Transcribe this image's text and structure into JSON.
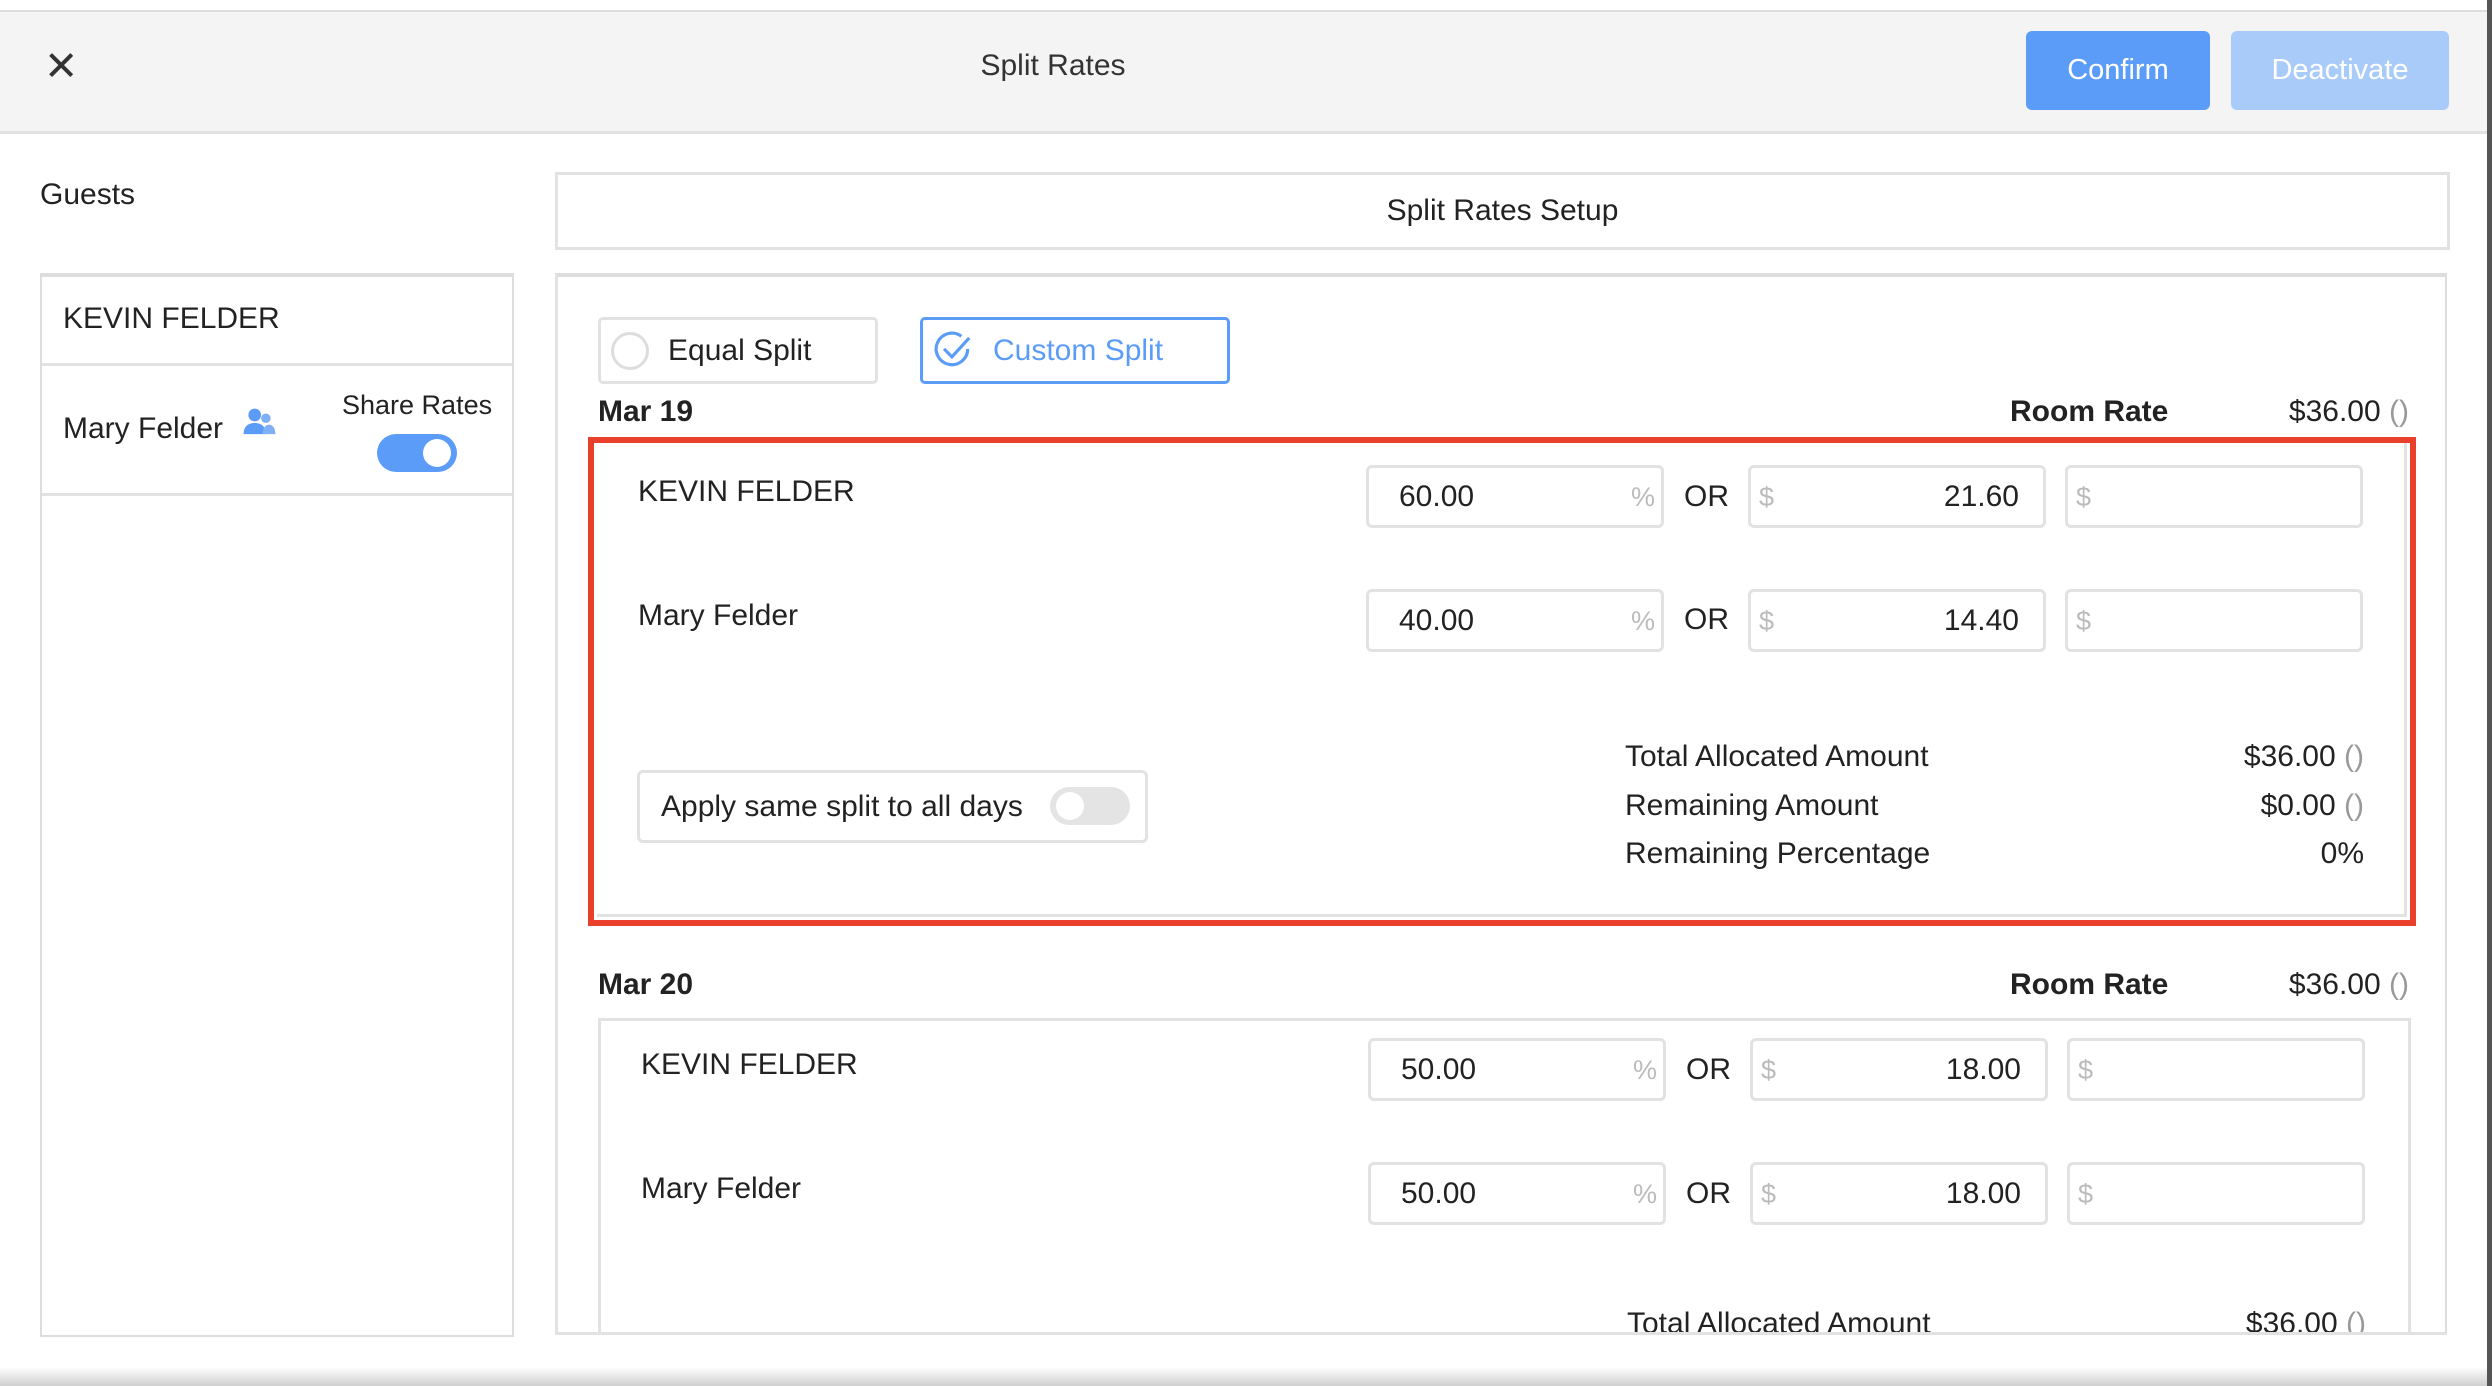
{
  "header": {
    "title": "Split Rates",
    "confirm_label": "Confirm",
    "deactivate_label": "Deactivate",
    "close_icon": "close-icon"
  },
  "colors": {
    "accent": "#5b9cf8",
    "accent_disabled": "#a9cbfa",
    "highlight": "#e8402a"
  },
  "guests": {
    "label": "Guests",
    "items": [
      {
        "name": "KEVIN FELDER"
      },
      {
        "name": "Mary Felder",
        "icon": "users-icon",
        "share_rates_label": "Share Rates",
        "share_rates_on": true
      }
    ]
  },
  "setup": {
    "title": "Split Rates Setup",
    "equal_split_label": "Equal Split",
    "custom_split_label": "Custom Split",
    "selected_mode": "Custom Split",
    "room_rate_label": "Room Rate",
    "or_label": "OR",
    "percent_unit": "%",
    "currency_unit": "$",
    "days": [
      {
        "date": "Mar 19",
        "room_rate": "$36.00",
        "paren": "()",
        "rows": [
          {
            "name": "KEVIN FELDER",
            "percent": "60.00",
            "amount": "21.60",
            "extra": ""
          },
          {
            "name": "Mary Felder",
            "percent": "40.00",
            "amount": "14.40",
            "extra": ""
          }
        ],
        "apply_label": "Apply same split to all days",
        "apply_on": false,
        "total_allocated_label": "Total Allocated Amount",
        "total_allocated": "$36.00",
        "remaining_amount_label": "Remaining Amount",
        "remaining_amount": "$0.00",
        "remaining_pct_label": "Remaining Percentage",
        "remaining_pct": "0%"
      },
      {
        "date": "Mar 20",
        "room_rate": "$36.00",
        "paren": "()",
        "rows": [
          {
            "name": "KEVIN FELDER",
            "percent": "50.00",
            "amount": "18.00",
            "extra": ""
          },
          {
            "name": "Mary Felder",
            "percent": "50.00",
            "amount": "18.00",
            "extra": ""
          }
        ],
        "total_allocated_label": "Total Allocated Amount",
        "total_allocated": "$36.00"
      }
    ]
  }
}
